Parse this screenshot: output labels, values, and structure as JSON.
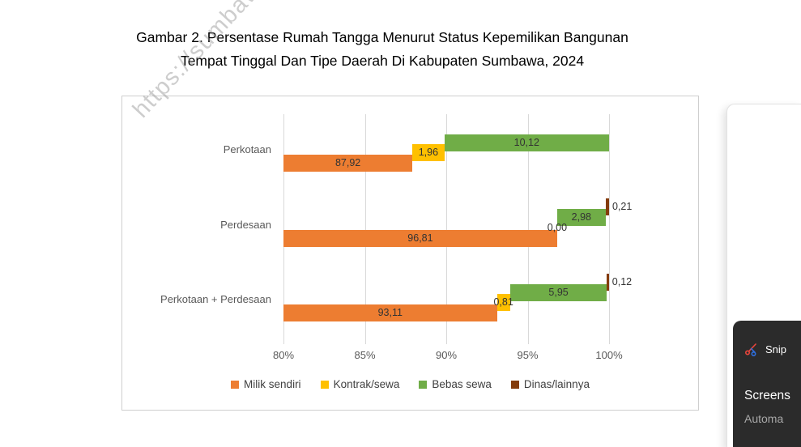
{
  "title": {
    "line1": "Gambar 2. Persentase Rumah Tangga Menurut Status Kepemilikan Bangunan",
    "line2": "Tempat Tinggal Dan Tipe Daerah Di Kabupaten Sumbawa, 2024"
  },
  "watermark": "https://sumbawakab.",
  "chart_data": {
    "type": "bar",
    "orientation": "horizontal",
    "stacked": true,
    "title": "Persentase Rumah Tangga Menurut Status Kepemilikan Bangunan Tempat Tinggal Dan Tipe Daerah Di Kabupaten Sumbawa, 2024",
    "categories": [
      "Perkotaan",
      "Perdesaan",
      "Perkotaan + Perdesaan"
    ],
    "series": [
      {
        "name": "Milik sendiri",
        "color": "#ED7D31",
        "values": [
          87.92,
          96.81,
          93.11
        ],
        "labels": [
          "87,92",
          "96,81",
          "93,11"
        ]
      },
      {
        "name": "Kontrak/sewa",
        "color": "#FFC000",
        "values": [
          1.96,
          0.0,
          0.81
        ],
        "labels": [
          "1,96",
          "0,00",
          "0,81"
        ]
      },
      {
        "name": "Bebas sewa",
        "color": "#70AD47",
        "values": [
          10.12,
          2.98,
          5.95
        ],
        "labels": [
          "10,12",
          "2,98",
          "5,95"
        ]
      },
      {
        "name": "Dinas/lainnya",
        "color": "#843C0C",
        "values": [
          null,
          0.21,
          0.12
        ],
        "labels": [
          "",
          "0,21",
          "0,12"
        ]
      }
    ],
    "x_axis": {
      "min": 80,
      "max": 100,
      "ticks": [
        "80%",
        "85%",
        "90%",
        "95%",
        "100%"
      ],
      "tick_values": [
        80,
        85,
        90,
        95,
        100
      ]
    },
    "grid": true,
    "legend_position": "bottom"
  },
  "overlay": {
    "snip_label": "Snip",
    "screenshot_label": "Screens",
    "automation_label": "Automa"
  }
}
